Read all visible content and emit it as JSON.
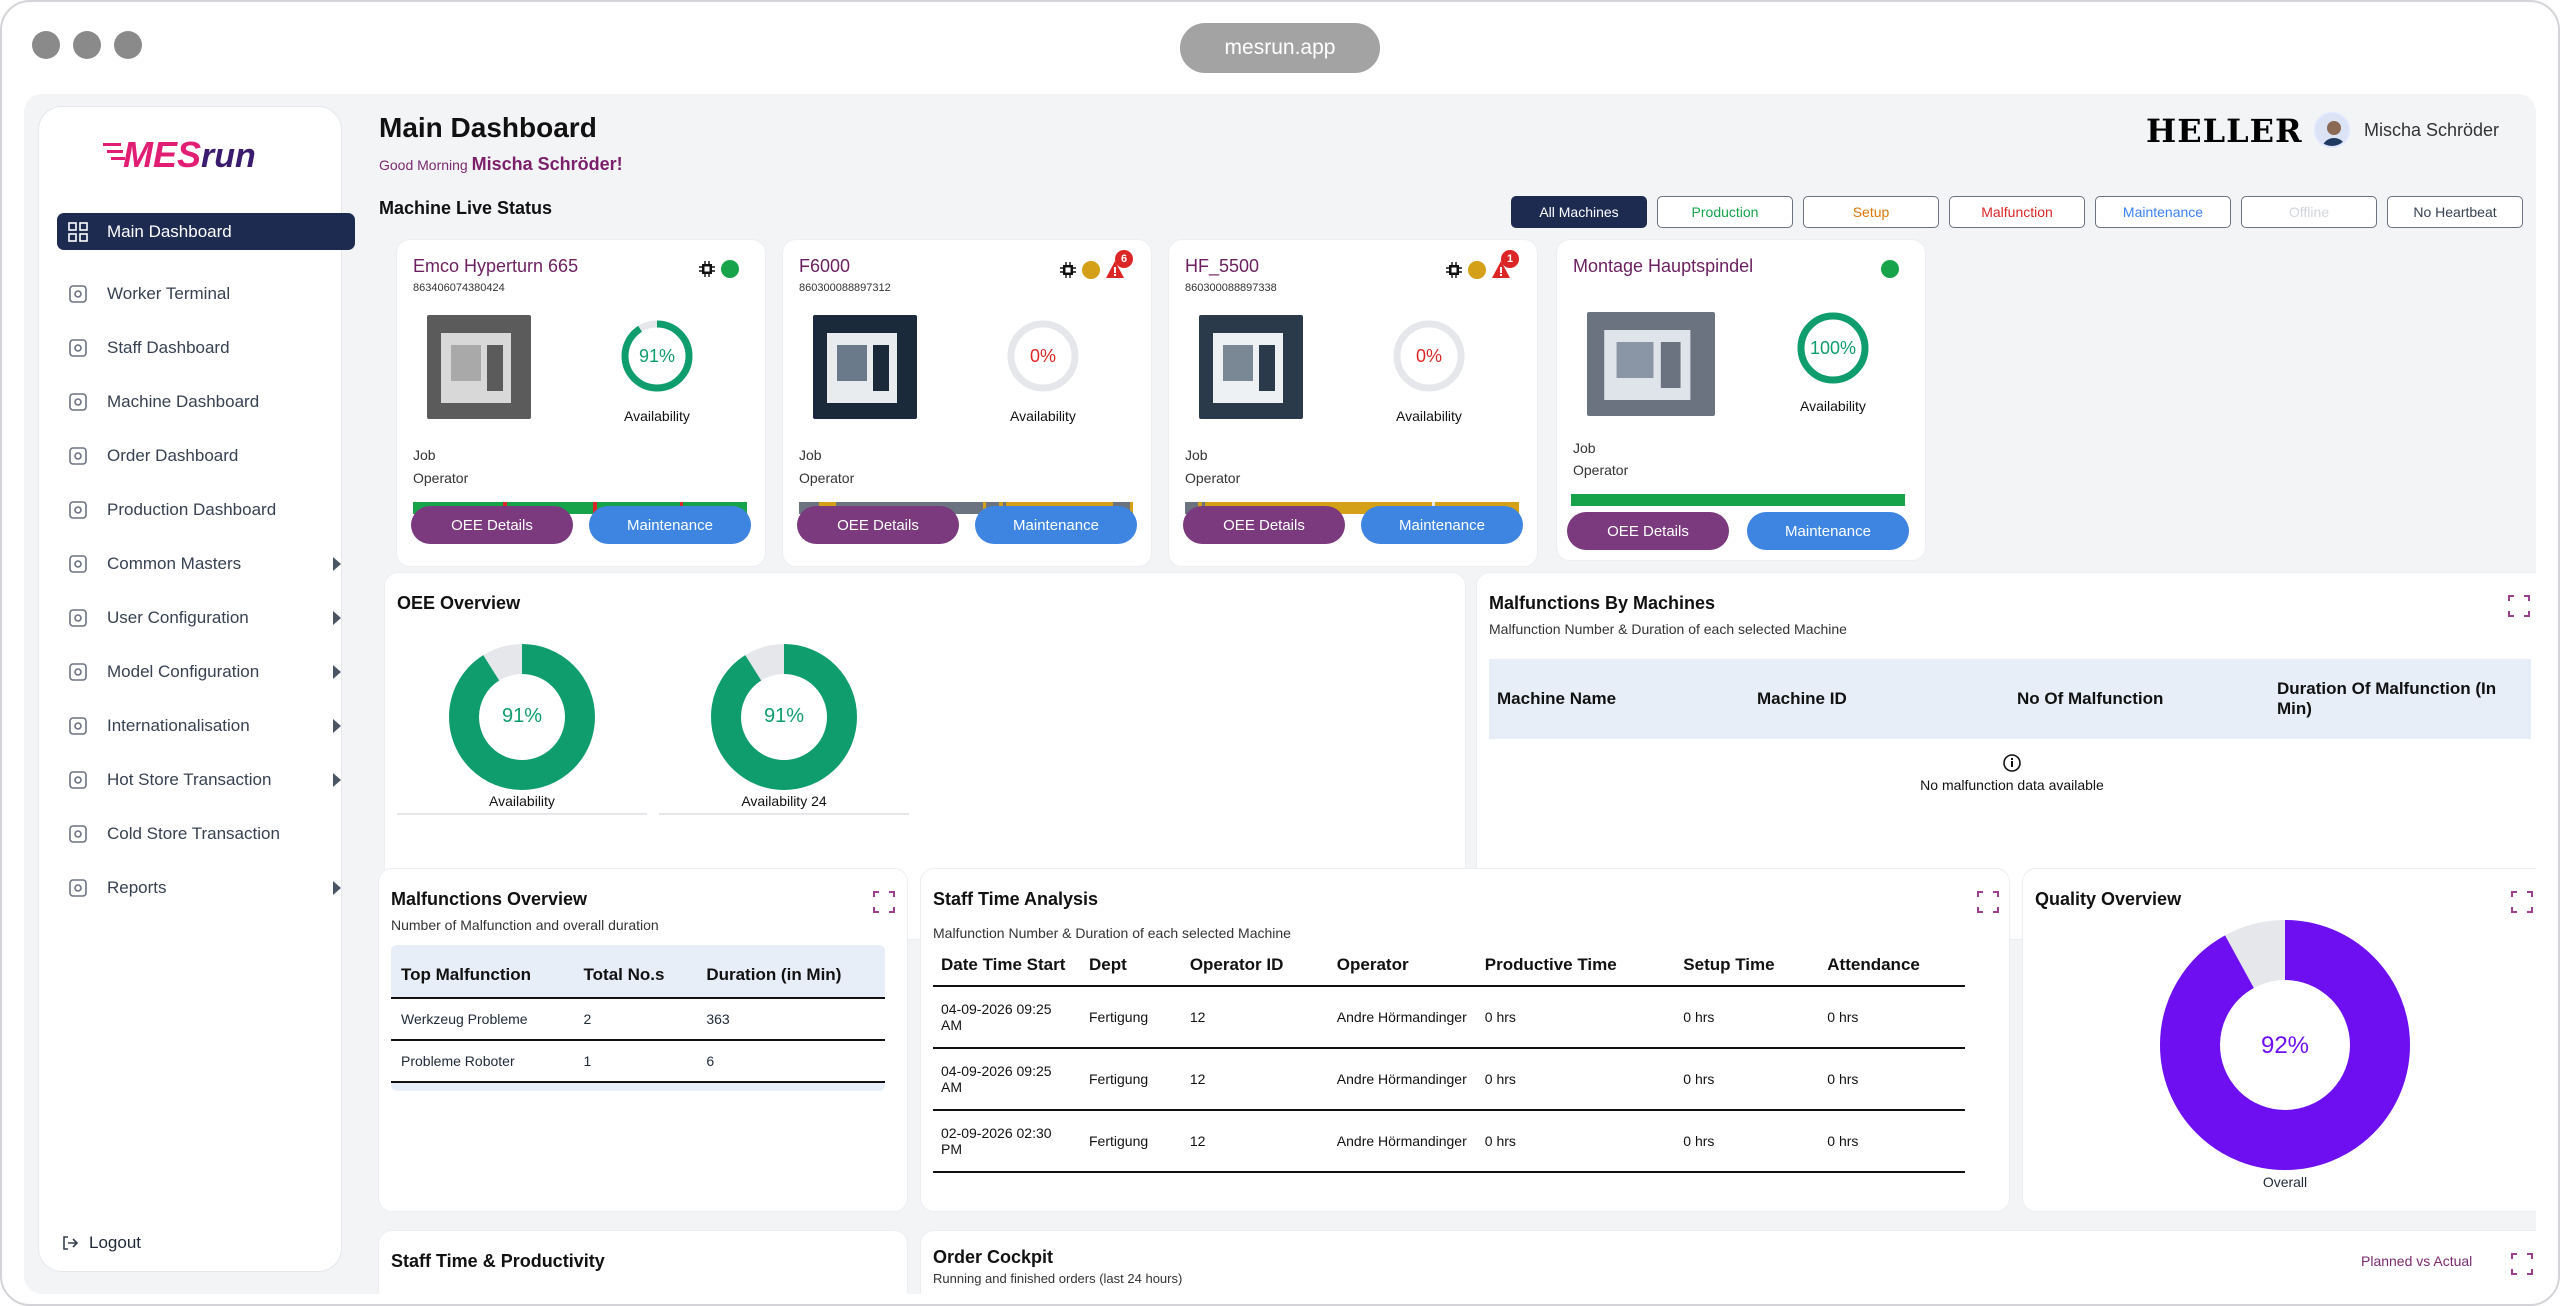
{
  "browser": {
    "url": "mesrun.app"
  },
  "logo": {
    "text_a": "MES",
    "text_b": "run"
  },
  "sidebar": {
    "items": [
      {
        "label": "Main Dashboard",
        "icon": "grid-icon",
        "active": true,
        "arrow": false
      },
      {
        "label": "Worker Terminal",
        "icon": "worker-icon",
        "active": false,
        "arrow": false
      },
      {
        "label": "Staff Dashboard",
        "icon": "staff-icon",
        "active": false,
        "arrow": false
      },
      {
        "label": "Machine Dashboard",
        "icon": "monitor-icon",
        "active": false,
        "arrow": false
      },
      {
        "label": "Order Dashboard",
        "icon": "clipboard-icon",
        "active": false,
        "arrow": false
      },
      {
        "label": "Production Dashboard",
        "icon": "production-icon",
        "active": false,
        "arrow": false
      },
      {
        "label": "Common Masters",
        "icon": "gear-icon",
        "active": false,
        "arrow": true
      },
      {
        "label": "User Configuration",
        "icon": "user-gear-icon",
        "active": false,
        "arrow": true
      },
      {
        "label": "Model Configuration",
        "icon": "model-icon",
        "active": false,
        "arrow": true
      },
      {
        "label": "Internationalisation",
        "icon": "globe-icon",
        "active": false,
        "arrow": true
      },
      {
        "label": "Hot Store Transaction",
        "icon": "store-icon",
        "active": false,
        "arrow": true
      },
      {
        "label": "Cold Store Transaction",
        "icon": "cold-store-icon",
        "active": false,
        "arrow": false
      },
      {
        "label": "Reports",
        "icon": "report-icon",
        "active": false,
        "arrow": true
      }
    ],
    "logout": "Logout"
  },
  "header": {
    "title": "Main Dashboard",
    "greeting": "Good Morning",
    "user_name": "Mischa Schröder!",
    "brand": "HELLER",
    "account_name": "Mischa Schröder"
  },
  "live_status": {
    "title": "Machine Live Status",
    "filters": [
      {
        "label": "All Machines",
        "color": "#ffffff",
        "active": true
      },
      {
        "label": "Production",
        "color": "#16a34a",
        "active": false
      },
      {
        "label": "Setup",
        "color": "#d97706",
        "active": false
      },
      {
        "label": "Malfunction",
        "color": "#dc2626",
        "active": false
      },
      {
        "label": "Maintenance",
        "color": "#3b82f6",
        "active": false
      },
      {
        "label": "Offline",
        "color": "#d1d5db",
        "active": false
      },
      {
        "label": "No Heartbeat",
        "color": "#374151",
        "active": false
      }
    ]
  },
  "machines": [
    {
      "name": "Emco Hyperturn 665",
      "id": "863406074380424",
      "availability": "91%",
      "availability_value": 0.91,
      "ring_color": "#0f9d6e",
      "val_color": "#0f9d6e",
      "status_color": "#16a34a",
      "alerts": null,
      "job": "Job",
      "operator": "Operator",
      "avail_label": "Availability",
      "bar": [
        [
          "#16a34a",
          27
        ],
        [
          "#dc2626",
          1
        ],
        [
          "#16a34a",
          26
        ],
        [
          "#dc2626",
          1
        ],
        [
          "#16a34a",
          25
        ],
        [
          "#dc2626",
          1
        ],
        [
          "#16a34a",
          19
        ]
      ],
      "oee": "OEE Details",
      "maint": "Maintenance"
    },
    {
      "name": "F6000",
      "id": "860300088897312",
      "availability": "0%",
      "availability_value": 0,
      "ring_color": "#e5e7eb",
      "val_color": "#dc2626",
      "status_color": "#d4a017",
      "alerts": "6",
      "job": "Job",
      "operator": "Operator",
      "avail_label": "Availability",
      "bar": [
        [
          "#6b7280",
          6
        ],
        [
          "#d4a017",
          5
        ],
        [
          "#6b7280",
          44
        ],
        [
          "#d4a017",
          1
        ],
        [
          "#6b7280",
          4
        ],
        [
          "#d4a017",
          1
        ],
        [
          "#6b7280",
          1
        ],
        [
          "#d4a017",
          32
        ],
        [
          "#6b7280",
          5
        ],
        [
          "#d4a017",
          1
        ]
      ],
      "oee": "OEE Details",
      "maint": "Maintenance"
    },
    {
      "name": "HF_5500",
      "id": "860300088897338",
      "availability": "0%",
      "availability_value": 0,
      "ring_color": "#e5e7eb",
      "val_color": "#dc2626",
      "status_color": "#d4a017",
      "alerts": "1",
      "job": "Job",
      "operator": "Operator",
      "avail_label": "Availability",
      "bar": [
        [
          "#6b7280",
          4
        ],
        [
          "#d4a017",
          1
        ],
        [
          "#6b7280",
          1
        ],
        [
          "#d4a017",
          68
        ],
        [
          "#e5e7eb",
          1
        ],
        [
          "#d4a017",
          25
        ]
      ],
      "oee": "OEE Details",
      "maint": "Maintenance"
    },
    {
      "name": "Montage Hauptspindel",
      "id": "",
      "availability": "100%",
      "availability_value": 1,
      "ring_color": "#0f9d6e",
      "val_color": "#0f9d6e",
      "status_color": "#16a34a",
      "alerts": null,
      "job": "Job",
      "operator": "Operator",
      "avail_label": "Availability",
      "bar": [
        [
          "#16a34a",
          100
        ]
      ],
      "oee": "OEE Details",
      "maint": "Maintenance"
    }
  ],
  "oee_overview": {
    "title": "OEE Overview",
    "donuts": [
      {
        "value": "91%",
        "fraction": 0.91,
        "label": "Availability"
      },
      {
        "value": "91%",
        "fraction": 0.91,
        "label": "Availability 24"
      }
    ]
  },
  "malfunctions_by_machines": {
    "title": "Malfunctions By Machines",
    "subtitle": "Malfunction Number & Duration of each selected Machine",
    "columns": [
      "Machine Name",
      "Machine ID",
      "No Of Malfunction",
      "Duration Of Malfunction (In Min)"
    ],
    "empty": "No malfunction data available"
  },
  "malfunctions_overview": {
    "title": "Malfunctions Overview",
    "subtitle": "Number of Malfunction and overall duration",
    "columns": [
      "Top Malfunction",
      "Total No.s",
      "Duration (in Min)"
    ],
    "rows": [
      [
        "Werkzeug Probleme",
        "2",
        "363"
      ],
      [
        "Probleme Roboter",
        "1",
        "6"
      ]
    ]
  },
  "staff_time": {
    "title": "Staff Time Analysis",
    "subtitle": "Malfunction Number & Duration of each selected Machine",
    "columns": [
      "Date Time Start",
      "Dept",
      "Operator ID",
      "Operator",
      "Productive Time",
      "Setup Time",
      "Attendance"
    ],
    "rows": [
      [
        "04-09-2026 09:25 AM",
        "Fertigung",
        "12",
        "Andre Hörmandinger",
        "0 hrs",
        "0 hrs",
        "0 hrs"
      ],
      [
        "04-09-2026 09:25 AM",
        "Fertigung",
        "12",
        "Andre Hörmandinger",
        "0 hrs",
        "0 hrs",
        "0 hrs"
      ],
      [
        "02-09-2026 02:30 PM",
        "Fertigung",
        "12",
        "Andre Hörmandinger",
        "0 hrs",
        "0 hrs",
        "0 hrs"
      ]
    ]
  },
  "quality": {
    "title": "Quality Overview",
    "value": "92%",
    "fraction": 0.92,
    "label": "Overall"
  },
  "staff_productivity": {
    "title": "Staff Time & Productivity"
  },
  "order_cockpit": {
    "title": "Order Cockpit",
    "subtitle": "Running and finished orders (last 24 hours)",
    "toggle": "Planned vs Actual"
  }
}
